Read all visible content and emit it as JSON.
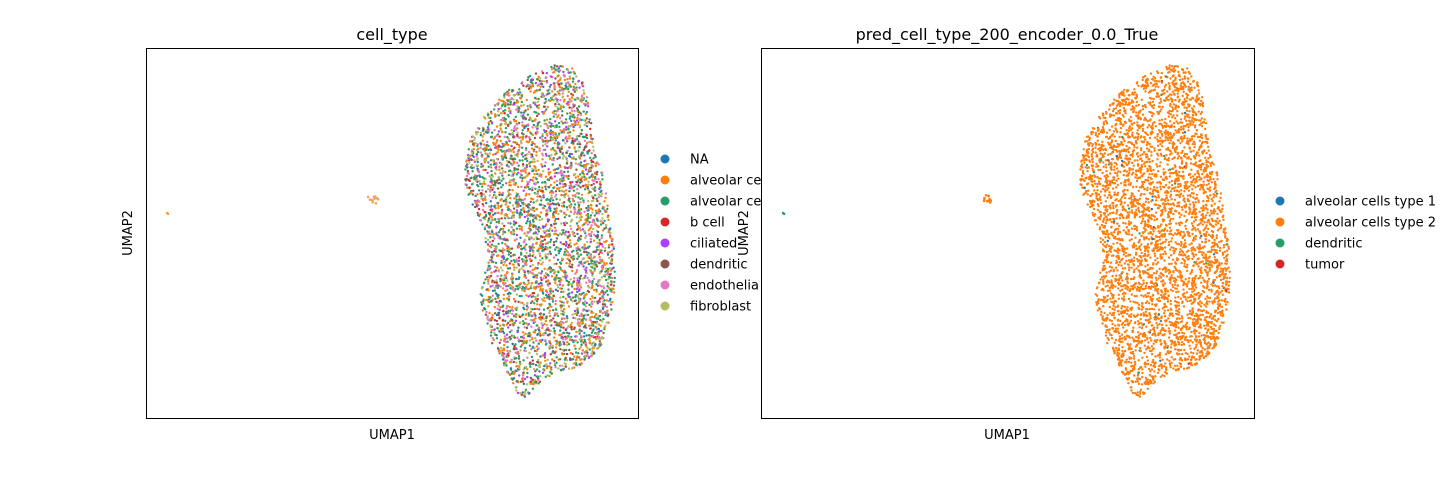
{
  "chart_data": [
    {
      "type": "scatter",
      "title": "cell_type",
      "xlabel": "UMAP1",
      "ylabel": "UMAP2",
      "grid": false,
      "legend_placement": "right outside",
      "legend": [
        {
          "label": "NA",
          "color": "#1f77b4"
        },
        {
          "label": "alveolar ce",
          "color": "#ff7f0e"
        },
        {
          "label": "alveolar ce",
          "color": "#279e68"
        },
        {
          "label": "b cell",
          "color": "#d62728"
        },
        {
          "label": "ciliated",
          "color": "#aa40fc"
        },
        {
          "label": "dendritic",
          "color": "#8c564b"
        },
        {
          "label": "endothelia",
          "color": "#e377c2"
        },
        {
          "label": "fibroblast",
          "color": "#b5bd61"
        }
      ],
      "point_mix": [
        {
          "color": "#279e68",
          "weight": 0.24
        },
        {
          "color": "#ff7f0e",
          "weight": 0.22
        },
        {
          "color": "#b5bd61",
          "weight": 0.16
        },
        {
          "color": "#e377c2",
          "weight": 0.14
        },
        {
          "color": "#8c564b",
          "weight": 0.08
        },
        {
          "color": "#aa40fc",
          "weight": 0.06
        },
        {
          "color": "#1f77b4",
          "weight": 0.06
        },
        {
          "color": "#d62728",
          "weight": 0.04
        }
      ]
    },
    {
      "type": "scatter",
      "title": "pred_cell_type_200_encoder_0.0_True",
      "xlabel": "UMAP1",
      "ylabel": "UMAP2",
      "grid": false,
      "legend_placement": "right outside",
      "legend": [
        {
          "label": "alveolar cells type 1",
          "color": "#1f77b4"
        },
        {
          "label": "alveolar cells type 2",
          "color": "#ff7f0e"
        },
        {
          "label": "dendritic",
          "color": "#279e68"
        },
        {
          "label": "tumor",
          "color": "#d62728"
        }
      ],
      "point_mix": [
        {
          "color": "#ff7f0e",
          "weight": 0.985
        },
        {
          "color": "#279e68",
          "weight": 0.008
        },
        {
          "color": "#1f77b4",
          "weight": 0.005
        },
        {
          "color": "#d62728",
          "weight": 0.002
        }
      ]
    }
  ]
}
